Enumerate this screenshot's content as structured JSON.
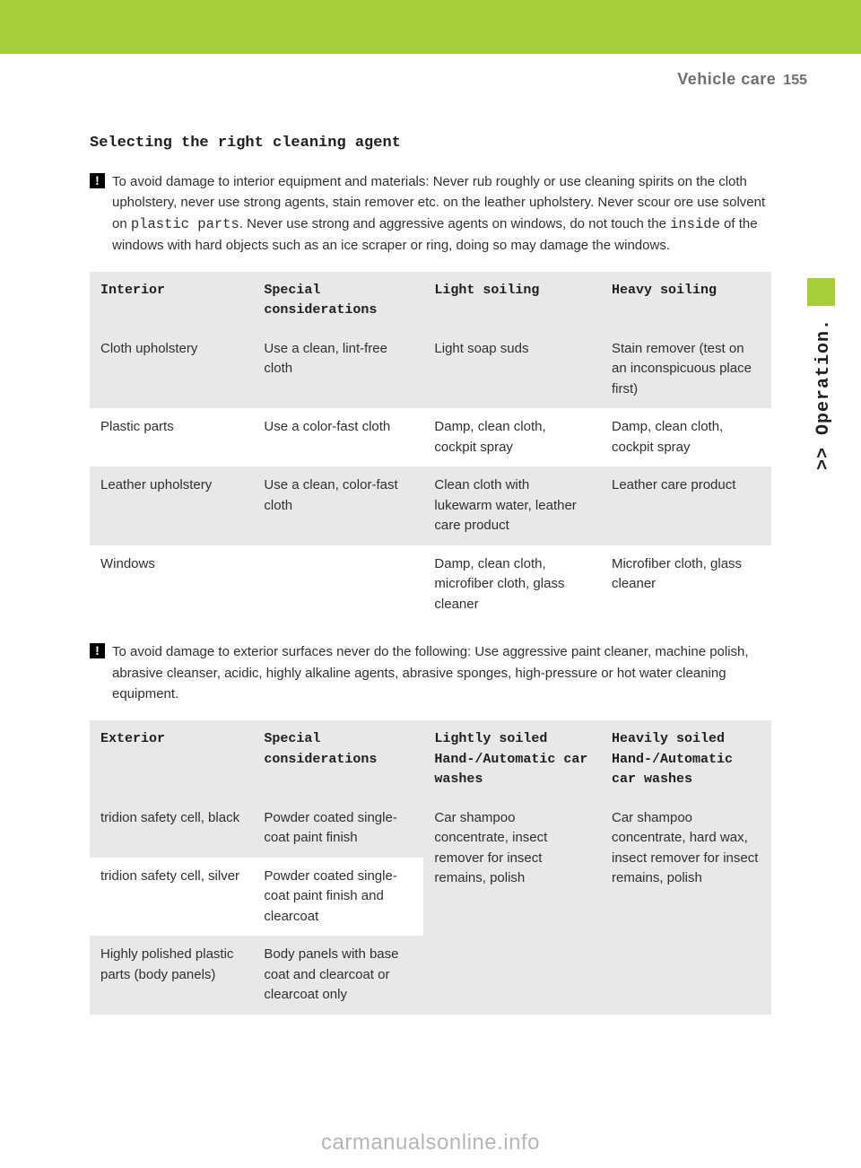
{
  "header": {
    "section_title": "Vehicle care",
    "page_number": "155"
  },
  "side_label": ">> Operation.",
  "subheading": "Selecting the right cleaning agent",
  "note1": {
    "icon": "!",
    "text_parts": [
      {
        "t": "To avoid damage to interior equipment and materials: Never rub roughly or use cleaning spirits on the cloth upholstery, never use strong agents, stain remover etc. on the leather upholstery. Never scour ore use solvent on ",
        "mono": false
      },
      {
        "t": "plastic parts",
        "mono": true
      },
      {
        "t": ". Never use strong and aggressive agents on windows, do not touch the ",
        "mono": false
      },
      {
        "t": "inside",
        "mono": true
      },
      {
        "t": " of the windows with hard objects such as an ice scraper or ring, doing so may damage the windows.",
        "mono": false
      }
    ]
  },
  "table1": {
    "headers": [
      "Interior",
      "Special considerations",
      "Light soiling",
      "Heavy soiling"
    ],
    "rows": [
      {
        "shaded": true,
        "cells": [
          "Cloth upholstery",
          "Use a clean, lint-free cloth",
          "Light soap suds",
          "Stain remover (test on an inconspicuous place first)"
        ]
      },
      {
        "shaded": false,
        "cells": [
          "Plastic parts",
          "Use a color-fast cloth",
          "Damp, clean cloth, cockpit spray",
          "Damp, clean cloth, cockpit spray"
        ]
      },
      {
        "shaded": true,
        "cells": [
          "Leather upholstery",
          "Use a clean, color-fast cloth",
          "Clean cloth with lukewarm water, leather care product",
          "Leather care product"
        ]
      },
      {
        "shaded": false,
        "cells": [
          "Windows",
          "",
          "Damp, clean cloth, microfiber cloth, glass cleaner",
          "Microfiber cloth, glass cleaner"
        ]
      }
    ]
  },
  "note2": {
    "icon": "!",
    "text": "To avoid damage to exterior surfaces never do the following: Use aggressive paint cleaner, machine polish, abrasive cleanser, acidic, highly alkaline agents, abrasive sponges, high-pressure or hot water cleaning equipment."
  },
  "table2": {
    "headers": {
      "c1": "Exterior",
      "c2": "Special considerations",
      "c3a": "Lightly soiled",
      "c3b": "Hand-/Automatic car washes",
      "c4a": "Heavily soiled",
      "c4b": "Hand-/Automatic car washes"
    },
    "rows": [
      {
        "shaded": true,
        "c1": "tridion safety cell, black",
        "c2": "Powder coated single-coat paint finish"
      },
      {
        "shaded": false,
        "c1": "tridion safety cell, silver",
        "c2": "Powder coated single-coat paint finish and clearcoat"
      },
      {
        "shaded": true,
        "c1": "Highly polished plastic parts (body panels)",
        "c2": "Body panels with base coat and clearcoat or clearcoat only"
      }
    ],
    "merged": {
      "c3": "Car shampoo concentrate, insect remover for insect remains, polish",
      "c4": "Car shampoo concentrate, hard wax, insect remover for insect remains, polish"
    }
  },
  "watermark": "carmanualsonline.info"
}
